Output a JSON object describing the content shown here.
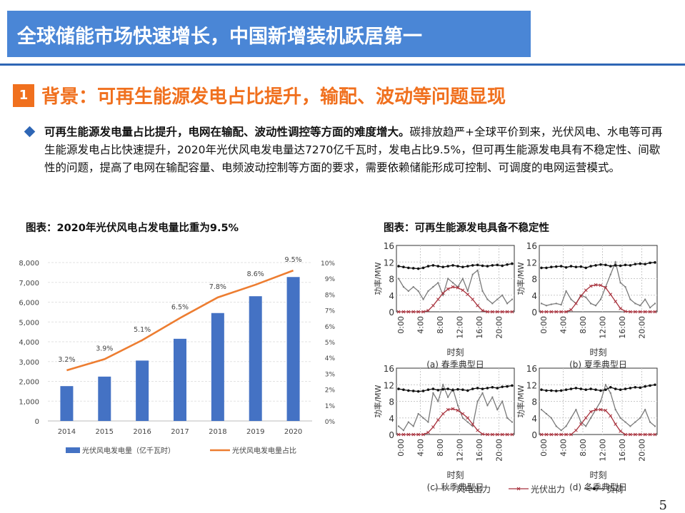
{
  "slide": {
    "title": "全球储能市场快速增长，中国新增装机跃居第一",
    "section_number": "1",
    "section_title": "背景：可再生能源发电占比提升，输配、波动等问题显现",
    "bullet_bold": "可再生能源发电量占比提升，电网在输配、波动性调控等方面的难度增大。",
    "bullet_rest": "碳排放趋严+全球平价到来，光伏风电、水电等可再生能源发电占比快速提升，2020年光伏风电发电量达7270亿千瓦时，发电占比9.5%，但可再生能源发电具有不稳定性、间歇性的问题，提高了电网在输配容量、电频波动控制等方面的要求，需要依赖储能形成可控制、可调度的电网运营模式。",
    "page_number": "5",
    "colors": {
      "title_bg": "#4A86D6",
      "accent": "#F0701E",
      "bar": "#4472C4",
      "line": "#ED7D31"
    }
  },
  "chart_data": [
    {
      "type": "bar",
      "title": "图表：2020年光伏风电占发电量比重为9.5%",
      "categories": [
        "2014",
        "2015",
        "2016",
        "2017",
        "2018",
        "2019",
        "2020"
      ],
      "series": [
        {
          "name": "光伏风电发电量（亿千瓦时）",
          "kind": "bar",
          "axis": "left",
          "values": [
            1760,
            2240,
            3050,
            4150,
            5450,
            6300,
            7270
          ]
        },
        {
          "name": "光伏风电发电量占比",
          "kind": "line",
          "axis": "right",
          "values": [
            3.2,
            3.9,
            5.1,
            6.5,
            7.8,
            8.6,
            9.5
          ],
          "labels": [
            "3.2%",
            "3.9%",
            "5.1%",
            "6.5%",
            "7.8%",
            "8.6%",
            "9.5%"
          ]
        }
      ],
      "y_left": {
        "range": [
          0,
          8000
        ],
        "ticks": [
          "0",
          "1,000",
          "2,000",
          "3,000",
          "4,000",
          "5,000",
          "6,000",
          "7,000",
          "8,000"
        ]
      },
      "y_right": {
        "range": [
          0,
          10
        ],
        "ticks": [
          "0%",
          "1%",
          "2%",
          "3%",
          "4%",
          "5%",
          "6%",
          "7%",
          "8%",
          "9%",
          "10%"
        ]
      },
      "grid": true,
      "legend": "bottom"
    },
    {
      "type": "line",
      "title": "图表：可再生能源发电具备不稳定性",
      "xlabel": "时刻",
      "ylabel": "功率/MW",
      "x_ticks": [
        "0:00",
        "4:00",
        "8:00",
        "12:00",
        "16:00",
        "20:00"
      ],
      "y_ticks": [
        "0",
        "4",
        "8",
        "12",
        "16"
      ],
      "ylim": [
        0,
        16
      ],
      "x": [
        0,
        1,
        2,
        3,
        4,
        5,
        6,
        7,
        8,
        9,
        10,
        11,
        12,
        13,
        14,
        15,
        16,
        17,
        18,
        19,
        20,
        21,
        22,
        23
      ],
      "legend": [
        "风电出力",
        "光伏出力",
        "负荷"
      ],
      "panels": [
        {
          "label": "(a) 春季典型日",
          "wind": [
            8,
            6,
            5,
            6,
            5,
            3,
            5,
            6,
            7,
            4,
            8,
            7,
            6,
            8,
            5,
            9,
            10,
            5,
            3,
            2,
            3,
            4,
            2,
            3
          ],
          "pv": [
            0,
            0,
            0,
            0,
            0,
            0,
            0.3,
            1.5,
            3,
            4.5,
            5.5,
            6,
            5.8,
            5.2,
            4.2,
            3,
            1.5,
            0.3,
            0,
            0,
            0,
            0,
            0,
            0
          ],
          "load": [
            11,
            10.8,
            10.6,
            10.5,
            10.4,
            10.6,
            11,
            11.2,
            11,
            10.8,
            11,
            11.2,
            11,
            10.8,
            11,
            11.2,
            11.3,
            11.1,
            11,
            11.2,
            11.3,
            11.1,
            11.4,
            11.6
          ]
        },
        {
          "label": "(b) 夏季典型日",
          "wind": [
            2,
            1.5,
            1.8,
            2,
            1.7,
            5,
            3,
            2,
            4,
            3.5,
            2,
            1.5,
            3,
            6,
            9,
            12,
            7,
            6,
            3,
            2,
            1.5,
            3,
            1,
            2
          ],
          "pv": [
            0,
            0,
            0,
            0,
            0,
            0,
            0.5,
            2,
            3.8,
            5.2,
            6.2,
            6.5,
            6.4,
            5.8,
            4.2,
            2.5,
            0.8,
            0.1,
            0,
            0,
            0,
            0,
            0,
            0
          ],
          "load": [
            10.6,
            10.6,
            10.8,
            10.9,
            11,
            10.7,
            11,
            10.8,
            10.9,
            10.6,
            11,
            11.2,
            11.4,
            11.3,
            11,
            11.2,
            11.1,
            11.3,
            11.2,
            11.5,
            11.6,
            11.5,
            11.8,
            11.9
          ]
        },
        {
          "label": "(c) 秋季典型日",
          "wind": [
            2,
            1,
            3,
            2,
            5,
            4,
            3,
            10,
            8,
            12,
            9,
            11,
            7,
            4,
            3,
            2,
            8,
            10,
            7,
            9,
            6,
            8,
            4,
            3
          ],
          "pv": [
            0,
            0,
            0,
            0,
            0,
            0,
            0.5,
            1.8,
            3.5,
            5,
            6,
            6.2,
            5.8,
            5,
            4,
            2.5,
            1,
            0.1,
            0,
            0,
            0,
            0,
            0,
            0
          ],
          "load": [
            11,
            10.8,
            10.6,
            10.5,
            10.4,
            10.5,
            10.8,
            11,
            10.7,
            10.9,
            11,
            10.7,
            10.9,
            10.8,
            10.6,
            11,
            11.2,
            11,
            11.2,
            11.4,
            11.2,
            11.5,
            11.6,
            11.8
          ]
        },
        {
          "label": "(d) 冬季典型日",
          "wind": [
            6,
            5,
            4,
            2,
            1,
            2,
            4,
            6,
            3,
            2,
            4,
            6,
            8,
            12,
            10,
            6,
            4,
            3,
            2,
            3,
            4,
            6,
            3,
            2
          ],
          "pv": [
            0,
            0,
            0,
            0,
            0,
            0,
            0,
            1,
            2.5,
            4,
            5.5,
            6,
            6,
            5.8,
            4.5,
            2.5,
            0.8,
            0,
            0,
            0,
            0,
            0,
            0,
            0
          ],
          "load": [
            10.8,
            10.6,
            10.6,
            10.5,
            10.6,
            10.8,
            11,
            11.2,
            11,
            10.8,
            11,
            10.8,
            10.6,
            10.8,
            11.4,
            11,
            10.8,
            11,
            11.2,
            11.4,
            11.3,
            11.6,
            11.8,
            12
          ]
        }
      ]
    }
  ]
}
